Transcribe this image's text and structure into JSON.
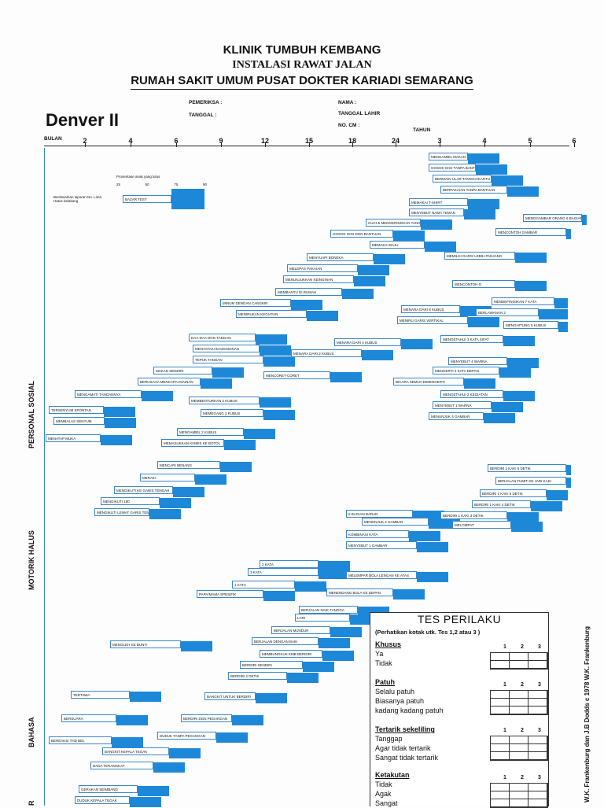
{
  "header": {
    "line1": "KLINIK TUMBUH KEMBANG",
    "line2": "INSTALASI RAWAT JALAN",
    "line3": "RUMAH SAKIT UMUM PUSAT DOKTER KARIADI SEMARANG"
  },
  "form": {
    "title": "Denver II",
    "pemeriksa": "PEMERIKSA :",
    "tanggal": "TANGGAL :",
    "nama": "NAMA :",
    "tanggal_lahir": "TANGGAL LAHIR",
    "no_cm": "NO. CM :"
  },
  "axis": {
    "bulan_label": "BULAN",
    "tahun_label": "TAHUN",
    "bulan_ticks": [
      "2",
      "4",
      "6",
      "9",
      "12",
      "15",
      "18",
      "24"
    ],
    "tahun_ticks": [
      "3",
      "4",
      "5",
      "6"
    ]
  },
  "legend": {
    "caption": "Prosentase anak yang lulus",
    "percents": [
      "25",
      "50",
      "75",
      "90"
    ],
    "example": "BAZAR TEST",
    "note": "Berdasarkan laporan No. Lima Hatus belakang"
  },
  "sections": {
    "personal_sosial": "PERSONAL SOSIAL",
    "motorik_halus": "MOTORIK HALUS",
    "bahasa": "BAHASA",
    "r": "R"
  },
  "items": [
    {
      "t": "MENGAMBIL MAKAN"
    },
    {
      "t": "GOSOK GIGI TANPA BANTUAN"
    },
    {
      "t": "BERMAIN ULAR TANGGA/KARTU"
    },
    {
      "t": "BERPAKAIAN TANPA BANTUAN"
    },
    {
      "t": "MEMAKAI T-SHIRT"
    },
    {
      "t": "MENYEBUT NAMA TEMAN"
    },
    {
      "t": "CUCI & MENGERINGKAN TANGAN"
    },
    {
      "t": "GOSOK GIGI DGN BANTUAN"
    },
    {
      "t": "MEMAKAI BAJU"
    },
    {
      "t": "MENYUAPI BONEKA"
    },
    {
      "t": "MELEPAS PAKAIAN"
    },
    {
      "t": "MENUNJUKKAN KEINGINAN"
    },
    {
      "t": "MEMBANTU DI RUMAH"
    },
    {
      "t": "MINUM DENGAN CANGKIR"
    },
    {
      "t": "MENIRUKAN KEGIATAN"
    },
    {
      "t": "DAA-DAA DGN TANGAN"
    },
    {
      "t": "MENYATAKAN KEINGINAN"
    },
    {
      "t": "TEPUK TANGAN"
    },
    {
      "t": "MAKAN SENDIRI"
    },
    {
      "t": "BERUSAHA MENCAPAI MAINAN"
    },
    {
      "t": "TERSENYUM SPONTAN"
    },
    {
      "t": "MEMBALAS SENYUM"
    },
    {
      "t": "MENATAP MUKA"
    },
    {
      "t": "MENGAMATI TANGANNYA"
    },
    {
      "t": "MENGGAMBAR ORANG 6 BAGIAN"
    },
    {
      "t": "MENCONTOH GAMBAR"
    },
    {
      "t": "MEMILIH GARIS LEBIH PANJANG"
    },
    {
      "t": "MENCONTOH O"
    },
    {
      "t": "MENARA DARI 8 KUBUS"
    },
    {
      "t": "MENIRU GARIS VERTIKAL"
    },
    {
      "t": "MENARA DARI 4 KUBUS"
    },
    {
      "t": "MENARA DARI 2 KUBUS"
    },
    {
      "t": "MENCORET-CORET"
    },
    {
      "t": "MEMASUKKAN KISMIS KE BOTOL"
    },
    {
      "t": "MEMBENTURKAN 2 KUBUS"
    },
    {
      "t": "MEMEGANG 2 KUBUS"
    },
    {
      "t": "MENGAMBIL 2 KUBUS"
    },
    {
      "t": "MENCARI BENANG"
    },
    {
      "t": "MERAIH"
    },
    {
      "t": "MENGIKUTI KE GARIS TENGAH"
    },
    {
      "t": "MENGIKUTI 180"
    },
    {
      "t": "MENGIKUTI LEWAT GARIS TENGAH"
    },
    {
      "t": "MENDEFINISIKAN 7 KATA"
    },
    {
      "t": "BERLAWANAN 2"
    },
    {
      "t": "MENGHITUNG 5 KUBUS"
    },
    {
      "t": "MENGETAHUI 3 KATA SIFAT"
    },
    {
      "t": "MENYEBUT 4 WARNA"
    },
    {
      "t": "MENGERTI 4 KATA DEPAN"
    },
    {
      "t": "BICARA SEMUA DIMENGERTI"
    },
    {
      "t": "MENGETAHUI 2 KEGIATAN"
    },
    {
      "t": "MENYEBUT 1 WARNA"
    },
    {
      "t": "MENUNJUK 4 GAMBAR"
    },
    {
      "t": "KOMBINASI KATA"
    },
    {
      "t": "MENYEBUT 1 GAMBAR"
    },
    {
      "t": "6 BAGIAN BADAN"
    },
    {
      "t": "MENUNJUK 2 GAMBAR"
    },
    {
      "t": "3 KATA"
    },
    {
      "t": "2 KATA"
    },
    {
      "t": "1 KATA"
    },
    {
      "t": "PAPA/MAMA SPESIFIK"
    },
    {
      "t": "MENOLEH KE BUNYI"
    },
    {
      "t": "TERTAWA"
    },
    {
      "t": "BERSUARA"
    },
    {
      "t": "BEREAKSI THD BEL"
    },
    {
      "t": "BERDIRI 1 KAKI 6 DETIK"
    },
    {
      "t": "BERJALAN TUMIT KE JARI KAKI"
    },
    {
      "t": "BERDIRI 1 KAKI 5 DETIK"
    },
    {
      "t": "BERDIRI 1 KAKI 4 DETIK"
    },
    {
      "t": "BERDIRI 1 KAKI 3 DETIK"
    },
    {
      "t": "MELOMPAT"
    },
    {
      "t": "MELEMPAR BOLA LENGAN KE ATAS"
    },
    {
      "t": "MENENDANG BOLA KE DEPAN"
    },
    {
      "t": "LARI"
    },
    {
      "t": "BERJALAN NAIK TANGGA"
    },
    {
      "t": "BERJALAN MUNDUR"
    },
    {
      "t": "BERJALAN DENGAN BAIK"
    },
    {
      "t": "MEMBUNGKUK KMB BERDIRI"
    },
    {
      "t": "BERDIRI SENDIRI"
    },
    {
      "t": "BERDIRI 2 DETIK"
    },
    {
      "t": "BANGKIT UNTUK BERDIRI"
    },
    {
      "t": "BERDIRI DGN PEGANGAN"
    },
    {
      "t": "DUDUK TANPA PEGANGAN"
    },
    {
      "t": "BANGKIT KEPALA TEGAK"
    },
    {
      "t": "DADA TERANGKAT"
    },
    {
      "t": "GERAKAN SEIMBANG"
    },
    {
      "t": "DUDUK KEPALA TEGAK"
    }
  ],
  "tes_perilaku": {
    "title": "TES PERILAKU",
    "note": "(Perhatikan kotak utk. Tes 1,2 atau 3 )",
    "cols": [
      "1",
      "2",
      "3"
    ],
    "groups": [
      {
        "title": "Khusus",
        "lines": [
          "Ya",
          "Tidak"
        ]
      },
      {
        "title": "Patuh",
        "lines": [
          "Selalu patuh",
          "Biasanya patuh",
          "kadang kadang patuh"
        ]
      },
      {
        "title": "Tertarik sekeliling",
        "lines": [
          "Tanggap",
          "Agar tidak tertarik",
          "Sangat tidak tertarik"
        ]
      },
      {
        "title": "Ketakutan",
        "lines": [
          "Tidak",
          "Agak",
          "Sangat"
        ]
      }
    ]
  },
  "copyright": "W.K. Frankenburg dan J.B Dodds c 1978 W.K. Frankenburg",
  "colors": {
    "bar": "#1e88d8",
    "border": "#3a86c8"
  }
}
